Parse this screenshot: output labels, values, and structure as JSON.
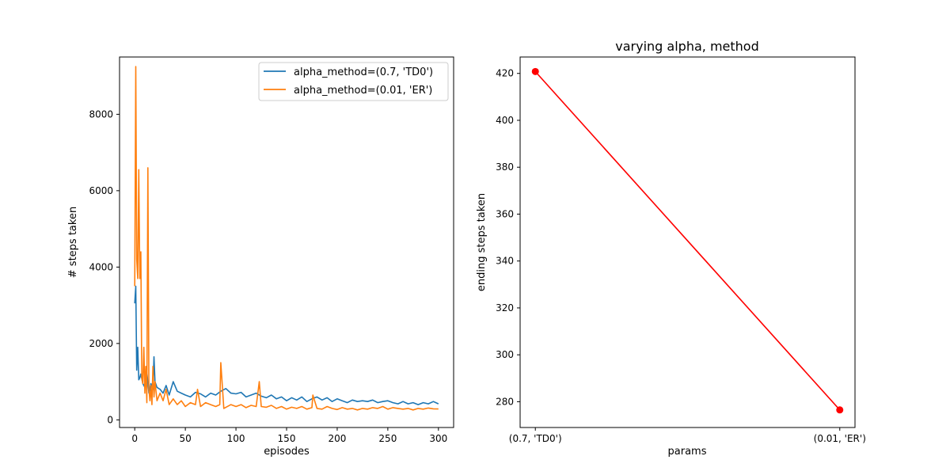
{
  "chart_data": [
    {
      "type": "line",
      "title": "",
      "xlabel": "episodes",
      "ylabel": "# steps taken",
      "xlim": [
        -15,
        315
      ],
      "ylim": [
        -200,
        9500
      ],
      "xticks": [
        0,
        50,
        100,
        150,
        200,
        250,
        300
      ],
      "yticks": [
        0,
        2000,
        4000,
        6000,
        8000
      ],
      "legend_position": "top-right",
      "series": [
        {
          "name": "alpha_method=(0.7, 'TD0')",
          "color": "#1f77b4",
          "x": [
            0,
            1,
            2,
            3,
            4,
            5,
            6,
            8,
            10,
            12,
            14,
            16,
            18,
            19,
            20,
            22,
            25,
            28,
            31,
            34,
            38,
            42,
            46,
            50,
            55,
            60,
            65,
            70,
            75,
            80,
            85,
            90,
            95,
            100,
            105,
            110,
            115,
            120,
            125,
            130,
            135,
            140,
            145,
            150,
            155,
            160,
            165,
            170,
            175,
            180,
            185,
            190,
            195,
            200,
            205,
            210,
            215,
            220,
            225,
            230,
            235,
            240,
            245,
            250,
            255,
            260,
            265,
            270,
            275,
            280,
            285,
            290,
            295,
            300
          ],
          "values": [
            3050,
            3500,
            1300,
            1900,
            1050,
            1100,
            1200,
            950,
            850,
            1250,
            700,
            950,
            800,
            1650,
            1000,
            850,
            800,
            700,
            900,
            650,
            1000,
            750,
            700,
            650,
            600,
            720,
            680,
            600,
            700,
            650,
            750,
            820,
            700,
            680,
            720,
            600,
            650,
            700,
            620,
            580,
            650,
            550,
            600,
            500,
            580,
            520,
            600,
            480,
            550,
            600,
            520,
            580,
            480,
            550,
            500,
            450,
            520,
            480,
            500,
            480,
            520,
            450,
            480,
            500,
            450,
            420,
            480,
            420,
            450,
            400,
            450,
            420,
            480,
            420
          ]
        },
        {
          "name": "alpha_method=(0.01, 'ER')",
          "color": "#ff7f0e",
          "x": [
            0,
            1,
            2,
            3,
            4,
            5,
            6,
            7,
            8,
            9,
            10,
            11,
            12,
            13,
            14,
            15,
            16,
            17,
            18,
            19,
            20,
            22,
            25,
            28,
            31,
            34,
            38,
            42,
            46,
            50,
            55,
            60,
            62,
            65,
            70,
            75,
            80,
            84,
            85,
            88,
            95,
            100,
            105,
            110,
            115,
            120,
            123,
            125,
            130,
            135,
            140,
            145,
            150,
            155,
            160,
            165,
            170,
            175,
            176,
            180,
            185,
            190,
            195,
            200,
            205,
            210,
            215,
            220,
            225,
            230,
            235,
            240,
            245,
            250,
            255,
            260,
            265,
            270,
            275,
            280,
            285,
            290,
            295,
            300
          ],
          "values": [
            3500,
            9250,
            4200,
            3700,
            6550,
            3700,
            4400,
            1100,
            950,
            1900,
            700,
            1400,
            450,
            6600,
            800,
            500,
            900,
            400,
            1400,
            600,
            1000,
            500,
            700,
            500,
            800,
            400,
            550,
            400,
            500,
            350,
            450,
            400,
            800,
            350,
            450,
            400,
            350,
            400,
            1500,
            300,
            400,
            350,
            400,
            320,
            380,
            350,
            1000,
            350,
            330,
            380,
            300,
            350,
            280,
            330,
            300,
            350,
            280,
            320,
            650,
            300,
            280,
            350,
            300,
            270,
            320,
            280,
            300,
            260,
            300,
            280,
            320,
            300,
            350,
            280,
            320,
            300,
            280,
            300,
            260,
            300,
            280,
            310,
            290,
            285
          ]
        }
      ]
    },
    {
      "type": "line",
      "title": "varying alpha, method",
      "xlabel": "params",
      "ylabel": "ending steps taken",
      "categories": [
        "(0.7, 'TD0')",
        "(0.01, 'ER')"
      ],
      "ylim": [
        269,
        427
      ],
      "yticks": [
        280,
        300,
        320,
        340,
        360,
        380,
        400,
        420
      ],
      "series": [
        {
          "color": "#ff0000",
          "marker": "circle",
          "values": [
            420.8,
            276.5
          ]
        }
      ]
    }
  ]
}
